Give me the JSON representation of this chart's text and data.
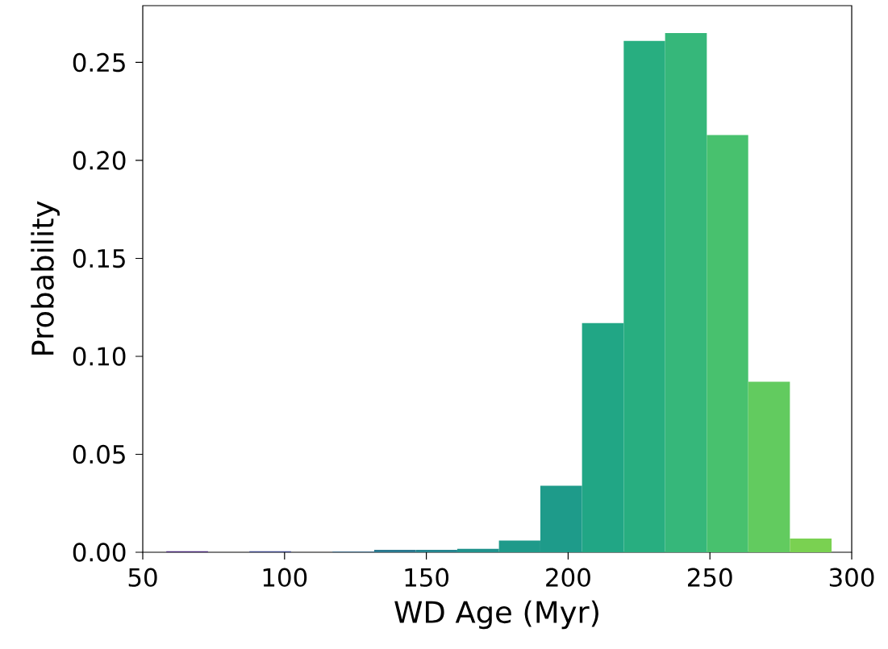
{
  "chart_data": {
    "type": "histogram",
    "xlabel": "WD Age (Myr)",
    "ylabel": "Probability",
    "bins": [
      58.3,
      73.0,
      87.6,
      102.3,
      116.9,
      131.6,
      146.3,
      160.9,
      175.6,
      190.2,
      204.9,
      219.6,
      234.2,
      248.9,
      263.5,
      278.2,
      292.9
    ],
    "values": [
      0.0005,
      0,
      0.0005,
      0,
      0.0003,
      0.0012,
      0.0012,
      0.0018,
      0.006,
      0.034,
      0.117,
      0.261,
      0.265,
      0.213,
      0.087,
      0.007
    ],
    "colors": [
      "#482878",
      "#443983",
      "#3e4989",
      "#375a8c",
      "#30698e",
      "#2a788e",
      "#25858e",
      "#20928c",
      "#1f9a8a",
      "#1e9b8a",
      "#21a685",
      "#28ae80",
      "#36b77a",
      "#48c16e",
      "#62cb5f",
      "#7ad151"
    ],
    "xlim": [
      50,
      300
    ],
    "ylim": [
      0,
      0.279
    ],
    "xticks": [
      50,
      100,
      150,
      200,
      250,
      300
    ],
    "yticks": [
      {
        "value": 0,
        "label": "0.00"
      },
      {
        "value": 0.05,
        "label": "0.05"
      },
      {
        "value": 0.1,
        "label": "0.10"
      },
      {
        "value": 0.15,
        "label": "0.15"
      },
      {
        "value": 0.2,
        "label": "0.20"
      },
      {
        "value": 0.25,
        "label": "0.25"
      }
    ]
  }
}
